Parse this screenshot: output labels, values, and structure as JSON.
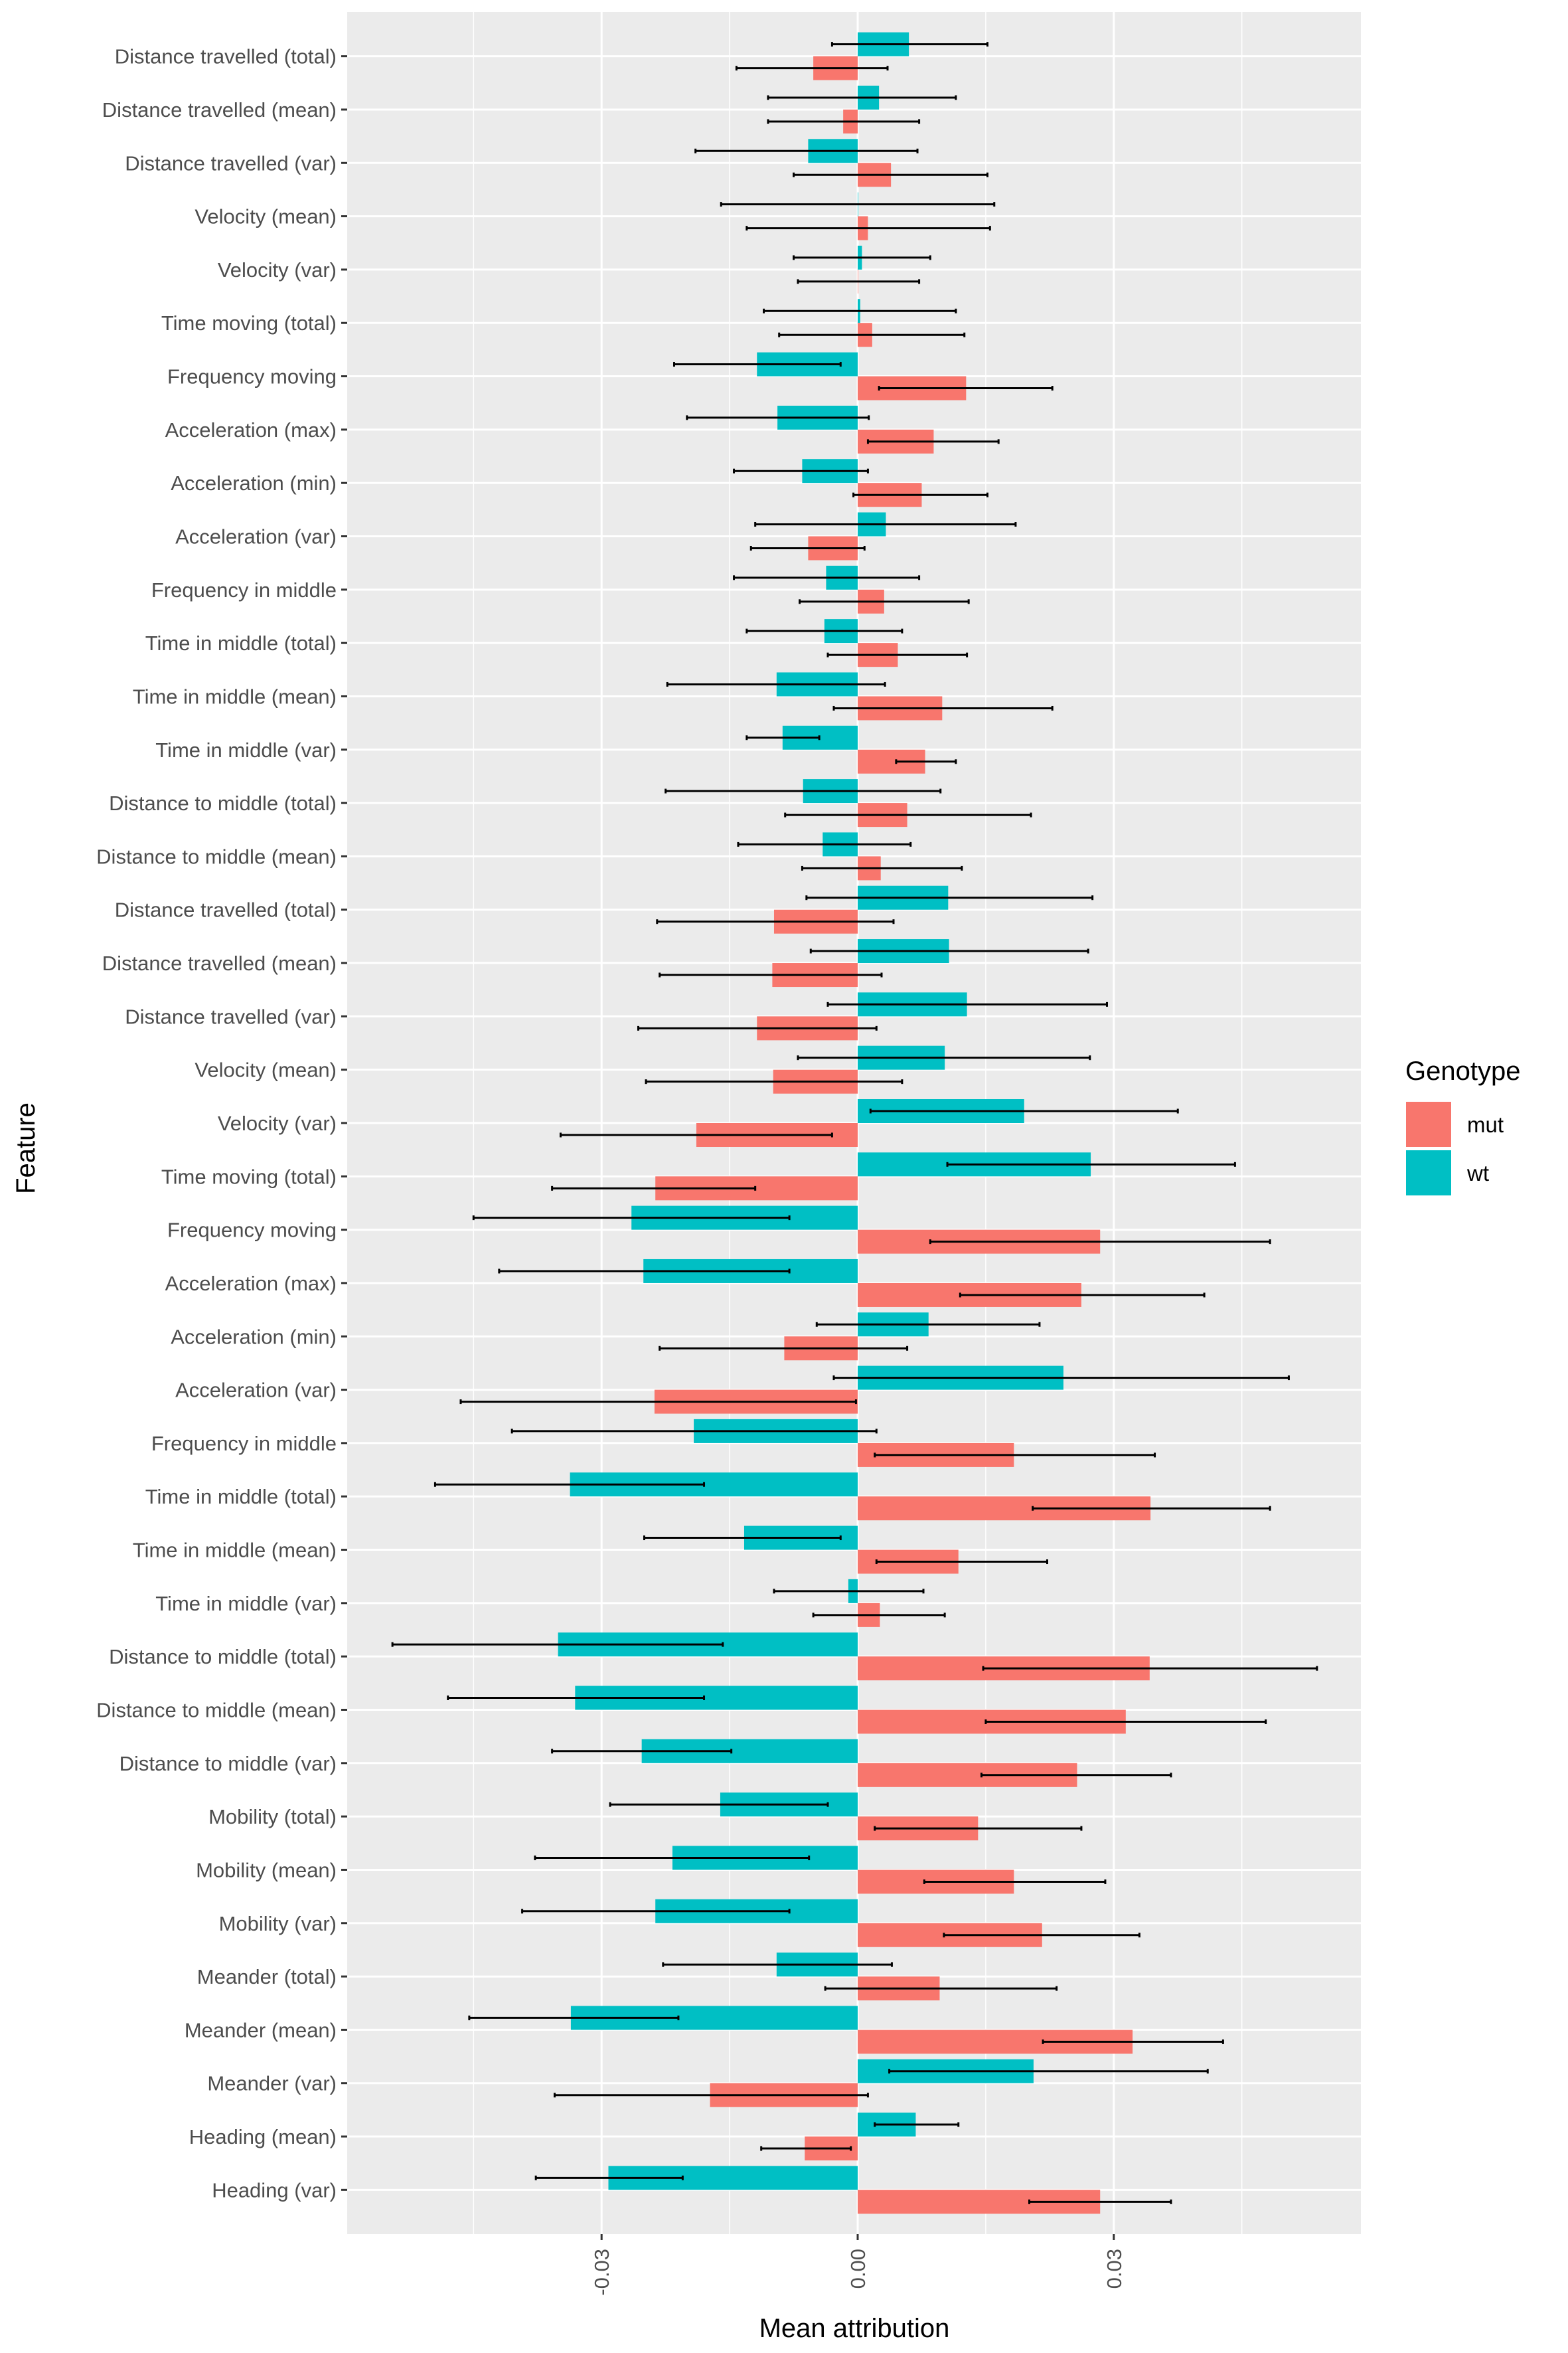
{
  "chart_data": {
    "type": "bar",
    "orientation": "horizontal",
    "xlabel": "Mean attribution",
    "ylabel": "Feature",
    "xlim": [
      -0.06,
      0.06
    ],
    "xticks": [
      -0.03,
      0.0,
      0.03
    ],
    "xtick_labels": [
      "-0.03",
      "0.00",
      "0.03"
    ],
    "grid": true,
    "legend": {
      "title": "Genotype",
      "position": "right",
      "entries": [
        {
          "name": "mut",
          "color": "#F8766D"
        },
        {
          "name": "wt",
          "color": "#00BFC4"
        }
      ]
    },
    "categories": [
      "Distance travelled (total)",
      "Distance travelled (mean)",
      "Distance travelled (var)",
      "Velocity (mean)",
      "Velocity (var)",
      "Time moving (total)",
      "Frequency moving",
      "Acceleration (max)",
      "Acceleration (min)",
      "Acceleration (var)",
      "Frequency in middle",
      "Time in middle (total)",
      "Time in middle (mean)",
      "Time in middle (var)",
      "Distance to middle (total)",
      "Distance to middle (mean)",
      "Distance travelled (total)",
      "Distance travelled (mean)",
      "Distance travelled (var)",
      "Velocity (mean)",
      "Velocity (var)",
      "Time moving (total)",
      "Frequency moving",
      "Acceleration (max)",
      "Acceleration (min)",
      "Acceleration (var)",
      "Frequency in middle",
      "Time in middle (total)",
      "Time in middle (mean)",
      "Time in middle (var)",
      "Distance to middle (total)",
      "Distance to middle (mean)",
      "Distance to middle (var)",
      "Mobility (total)",
      "Mobility (mean)",
      "Mobility (var)",
      "Meander (total)",
      "Meander (mean)",
      "Meander (var)",
      "Heading (mean)",
      "Heading (var)"
    ],
    "series": [
      {
        "name": "wt",
        "color": "#00BFC4",
        "values": [
          0.006,
          0.0025,
          -0.0058,
          0.0,
          0.0005,
          0.0003,
          -0.0118,
          -0.0094,
          -0.0065,
          0.0033,
          -0.0037,
          -0.0039,
          -0.0095,
          -0.0088,
          -0.0064,
          -0.0041,
          0.0106,
          0.0107,
          0.0128,
          0.0102,
          0.0195,
          0.0273,
          -0.0265,
          -0.0251,
          0.0083,
          0.0241,
          -0.0192,
          -0.0337,
          -0.0133,
          -0.0011,
          -0.0351,
          -0.0331,
          -0.0253,
          -0.0161,
          -0.0217,
          -0.0237,
          -0.0095,
          -0.0336,
          0.0206,
          0.0068,
          -0.0292
        ],
        "err_low": [
          -0.003,
          -0.0105,
          -0.019,
          -0.016,
          -0.0075,
          -0.011,
          -0.0215,
          -0.02,
          -0.0145,
          -0.012,
          -0.0145,
          -0.013,
          -0.0223,
          -0.013,
          -0.0225,
          -0.014,
          -0.006,
          -0.0055,
          -0.0035,
          -0.007,
          0.0015,
          0.0105,
          -0.045,
          -0.042,
          -0.0048,
          -0.0028,
          -0.0405,
          -0.0495,
          -0.025,
          -0.0098,
          -0.0545,
          -0.048,
          -0.0358,
          -0.029,
          -0.0378,
          -0.0393,
          -0.0228,
          -0.0455,
          0.0037,
          0.002,
          -0.0377
        ],
        "err_high": [
          0.0152,
          0.0115,
          0.007,
          0.016,
          0.0085,
          0.0115,
          -0.002,
          0.0013,
          0.0012,
          0.0185,
          0.0072,
          0.0052,
          0.0032,
          -0.0045,
          0.0097,
          0.0062,
          0.0275,
          0.027,
          0.0292,
          0.0272,
          0.0375,
          0.0442,
          -0.008,
          -0.008,
          0.0213,
          0.0505,
          0.0022,
          -0.018,
          -0.002,
          0.0077,
          -0.0158,
          -0.018,
          -0.0148,
          -0.0035,
          -0.0057,
          -0.008,
          0.004,
          -0.021,
          0.041,
          0.0118,
          -0.0205
        ]
      },
      {
        "name": "mut",
        "color": "#F8766D",
        "values": [
          -0.0052,
          -0.0017,
          0.0039,
          0.0012,
          0.0,
          0.0017,
          0.0127,
          0.0089,
          0.0075,
          -0.0058,
          0.0031,
          0.0047,
          0.0099,
          0.0079,
          0.0058,
          0.0027,
          -0.0098,
          -0.01,
          -0.0118,
          -0.0099,
          -0.0189,
          -0.0237,
          0.0284,
          0.0262,
          -0.0086,
          -0.0238,
          0.0183,
          0.0343,
          0.0118,
          0.0026,
          0.0342,
          0.0314,
          0.0257,
          0.0141,
          0.0183,
          0.0216,
          0.0096,
          0.0322,
          -0.0173,
          -0.0062,
          0.0284
        ],
        "err_low": [
          -0.0142,
          -0.0105,
          -0.0075,
          -0.013,
          -0.007,
          -0.0092,
          0.0025,
          0.0012,
          -0.0005,
          -0.0125,
          -0.0068,
          -0.0035,
          -0.0028,
          0.0045,
          -0.0085,
          -0.0065,
          -0.0235,
          -0.0232,
          -0.0257,
          -0.0248,
          -0.0348,
          -0.0358,
          0.0085,
          0.012,
          -0.0232,
          -0.0465,
          0.002,
          0.0205,
          0.0022,
          -0.0052,
          0.0147,
          0.015,
          0.0145,
          0.002,
          0.0078,
          0.0101,
          -0.0038,
          0.0217,
          -0.0355,
          -0.0113,
          0.0201
        ],
        "err_high": [
          0.0035,
          0.0072,
          0.0152,
          0.0155,
          0.0072,
          0.0125,
          0.0228,
          0.0165,
          0.0152,
          0.0008,
          0.013,
          0.0128,
          0.0228,
          0.0115,
          0.0203,
          0.0122,
          0.0042,
          0.0028,
          0.0022,
          0.0052,
          -0.003,
          -0.012,
          0.0483,
          0.0406,
          0.0058,
          -0.0002,
          0.0348,
          0.0483,
          0.0222,
          0.0102,
          0.0538,
          0.0478,
          0.0367,
          0.0262,
          0.029,
          0.033,
          0.0233,
          0.0428,
          0.0012,
          -0.0008,
          0.0367
        ]
      }
    ]
  }
}
